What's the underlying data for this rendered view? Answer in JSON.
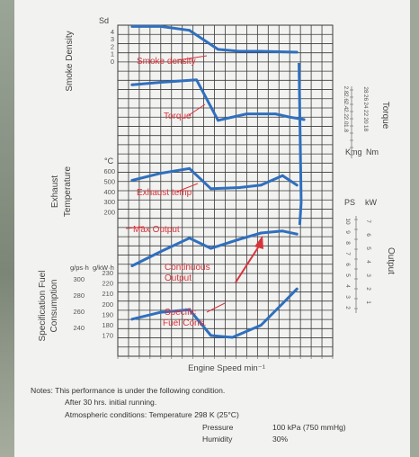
{
  "chart_data": {
    "type": "line",
    "x_axis": {
      "label": "Engine Speed min⁻¹",
      "range": [
        1000,
        4000
      ]
    },
    "panels": {
      "smoke": {
        "axis_label": "Smoke Density",
        "unit": "Sd",
        "ticks": [
          "4",
          "3",
          "2",
          "1",
          "0"
        ],
        "range": [
          0,
          5
        ]
      },
      "torque": {
        "axis_label": "Torque",
        "units_left": "Kmg",
        "units_right": "Nm",
        "ticks_left": [
          "2.8",
          "2.6",
          "2.4",
          "2.2",
          "2.0",
          "1.8"
        ],
        "ticks_right": [
          "28",
          "26",
          "24",
          "22",
          "20",
          "18"
        ]
      },
      "exhaust": {
        "axis_label_line1": "Exhaust",
        "axis_label_line2": "Temperature",
        "unit": "°C",
        "ticks": [
          "600",
          "500",
          "400",
          "300",
          "200"
        ],
        "range": [
          150,
          700
        ]
      },
      "output": {
        "axis_label": "Output",
        "unit_left": "PS",
        "unit_right": "kW",
        "ticks_left": [
          "10",
          "9",
          "8",
          "7",
          "6",
          "5",
          "4",
          "3",
          "2"
        ],
        "ticks_right": [
          "7",
          "6",
          "5",
          "4",
          "3",
          "2",
          "1"
        ]
      },
      "fuel": {
        "axis_label_line1": "Specification Fuel",
        "axis_label_line2": "Consumption",
        "unit_left": "g/ps·h",
        "unit_right": "g/kW·h",
        "ticks_left": [
          "300",
          "280",
          "260",
          "240"
        ],
        "ticks_right": [
          "230",
          "220",
          "210",
          "200",
          "190",
          "180",
          "170"
        ]
      }
    },
    "series": [
      {
        "name": "Smoke density",
        "panel": "smoke",
        "x": [
          1200,
          1600,
          2000,
          2400,
          2700,
          3000,
          3500
        ],
        "y": [
          4.3,
          4.3,
          3.9,
          1.9,
          1.7,
          1.7,
          1.6
        ]
      },
      {
        "name": "Torque",
        "panel": "torque",
        "x": [
          1200,
          1600,
          2100,
          2400,
          2800,
          3200,
          3400,
          3600
        ],
        "y": [
          24.2,
          24.5,
          24.8,
          19.8,
          20.6,
          20.6,
          20.2,
          19.9
        ]
      },
      {
        "name": "Exhaust temp.",
        "panel": "exhaust",
        "x": [
          1200,
          1600,
          2000,
          2300,
          2700,
          3000,
          3300,
          3500
        ],
        "y": [
          470,
          530,
          570,
          400,
          410,
          430,
          510,
          430
        ]
      },
      {
        "name": "Max Output",
        "panel": "output",
        "x": [
          1200,
          1600,
          2000,
          2300,
          2700,
          3000,
          3300,
          3500
        ],
        "y": [
          3.2,
          4.6,
          5.9,
          4.9,
          5.8,
          6.4,
          6.6,
          6.3
        ]
      },
      {
        "name": "Specific Fuel Cons.",
        "panel": "fuel",
        "x": [
          1200,
          1600,
          2000,
          2300,
          2600,
          3000,
          3300,
          3500
        ],
        "y": [
          265,
          273,
          276,
          246,
          244,
          258,
          283,
          300
        ]
      }
    ],
    "annotations": {
      "smoke": "Smoke density",
      "torque": "Torque",
      "exhaust": "Exhaust temp.",
      "max_output": "Max Output",
      "continuous_line1": "Continuous",
      "continuous_line2": "Output",
      "fuel_line1": "Specific",
      "fuel_line2": "Fuel Cons."
    },
    "colors": {
      "curve": "#2f6fbe",
      "annotation": "#d8333a",
      "grid": "#3a3a3a"
    }
  },
  "notes": {
    "line1": "Notes: This performance is under the following condition.",
    "line2": "After 30 hrs. initial running.",
    "line3": "Atmospheric conditions: Temperature 298 K (25°C)",
    "pressure_label": "Pressure",
    "pressure_value": "100 kPa (750 mmHg)",
    "humidity_label": "Humidity",
    "humidity_value": "30%"
  }
}
